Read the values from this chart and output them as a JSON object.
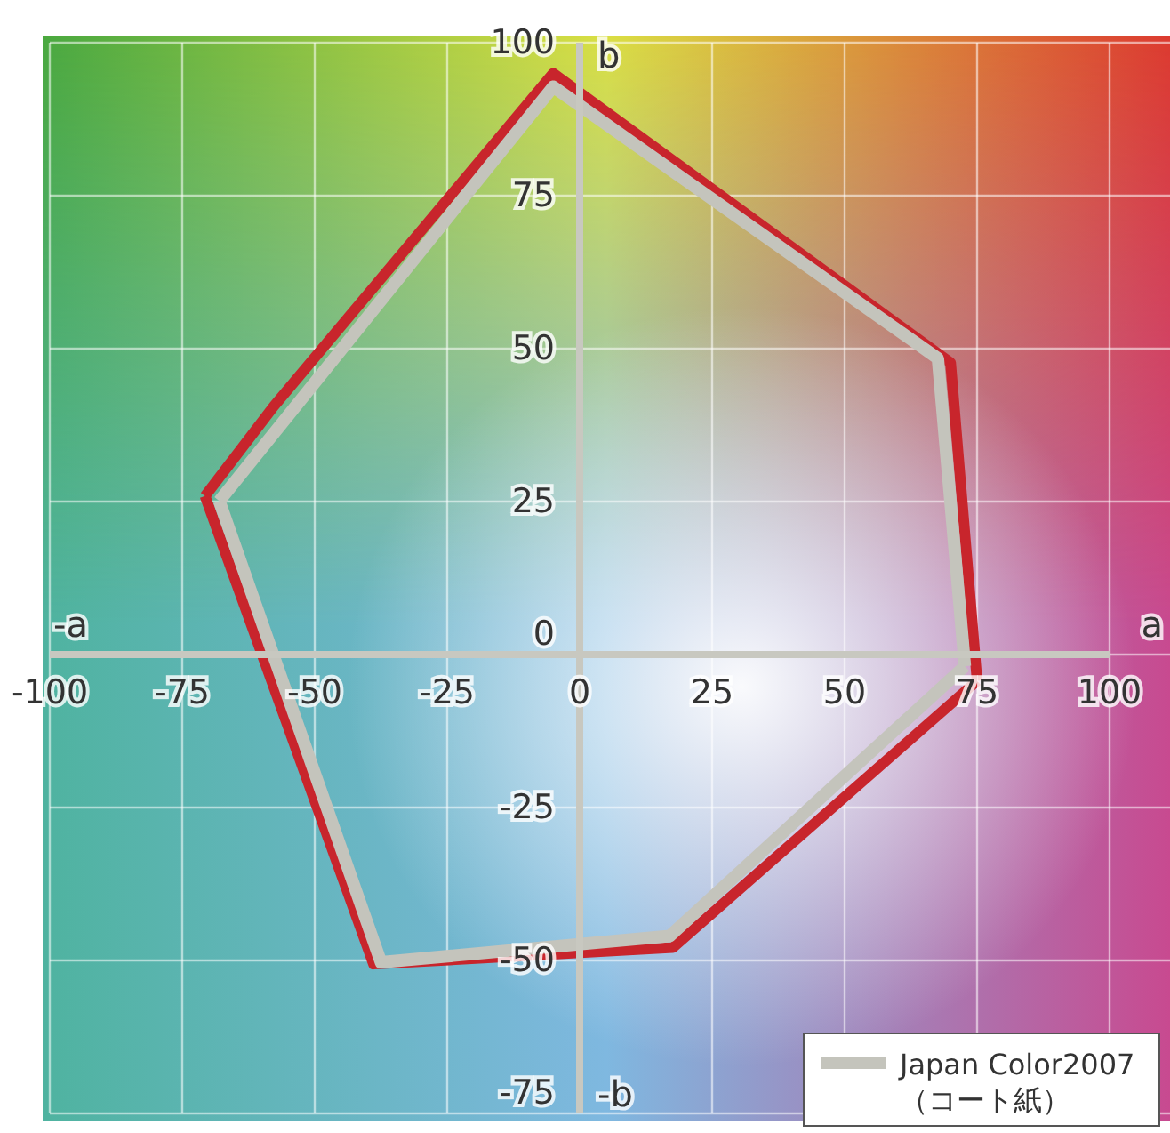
{
  "chart_data": {
    "type": "line",
    "xlabel": "a",
    "ylabel": "b",
    "xlim": [
      -100,
      100
    ],
    "ylim": [
      -75,
      100
    ],
    "xticks": [
      -100,
      -75,
      -50,
      -25,
      0,
      25,
      50,
      75,
      100
    ],
    "yticks": [
      -75,
      -50,
      -25,
      0,
      25,
      50,
      75,
      100
    ],
    "grid": true,
    "legend": "bottom right",
    "marker": "none",
    "line_style": "solid",
    "annotations": [
      "-a",
      "-b"
    ],
    "series": [
      {
        "color": "#c8252c",
        "x": [
          -70.7,
          -57.7,
          -5,
          70,
          75
        ],
        "values": [
          25.9,
          40.6,
          95,
          47.7,
          -4.3
        ]
      },
      {
        "color": "#c8252c",
        "x": [
          -70.7,
          -38.9,
          17.6,
          75
        ],
        "values": [
          25.9,
          -50.6,
          -47.9,
          -4.3
        ]
      },
      {
        "name": "Japan Color2007\n（コート紙）",
        "color": "#c4c4bc",
        "x": [
          -68,
          -5,
          67.6,
          72.7
        ],
        "values": [
          25.1,
          92.8,
          48.4,
          -1.9
        ]
      },
      {
        "color": "#c4c4bc",
        "x": [
          -68,
          -37.5,
          17,
          72.7
        ],
        "values": [
          25.1,
          -50.3,
          -46,
          -1.9
        ]
      }
    ]
  }
}
